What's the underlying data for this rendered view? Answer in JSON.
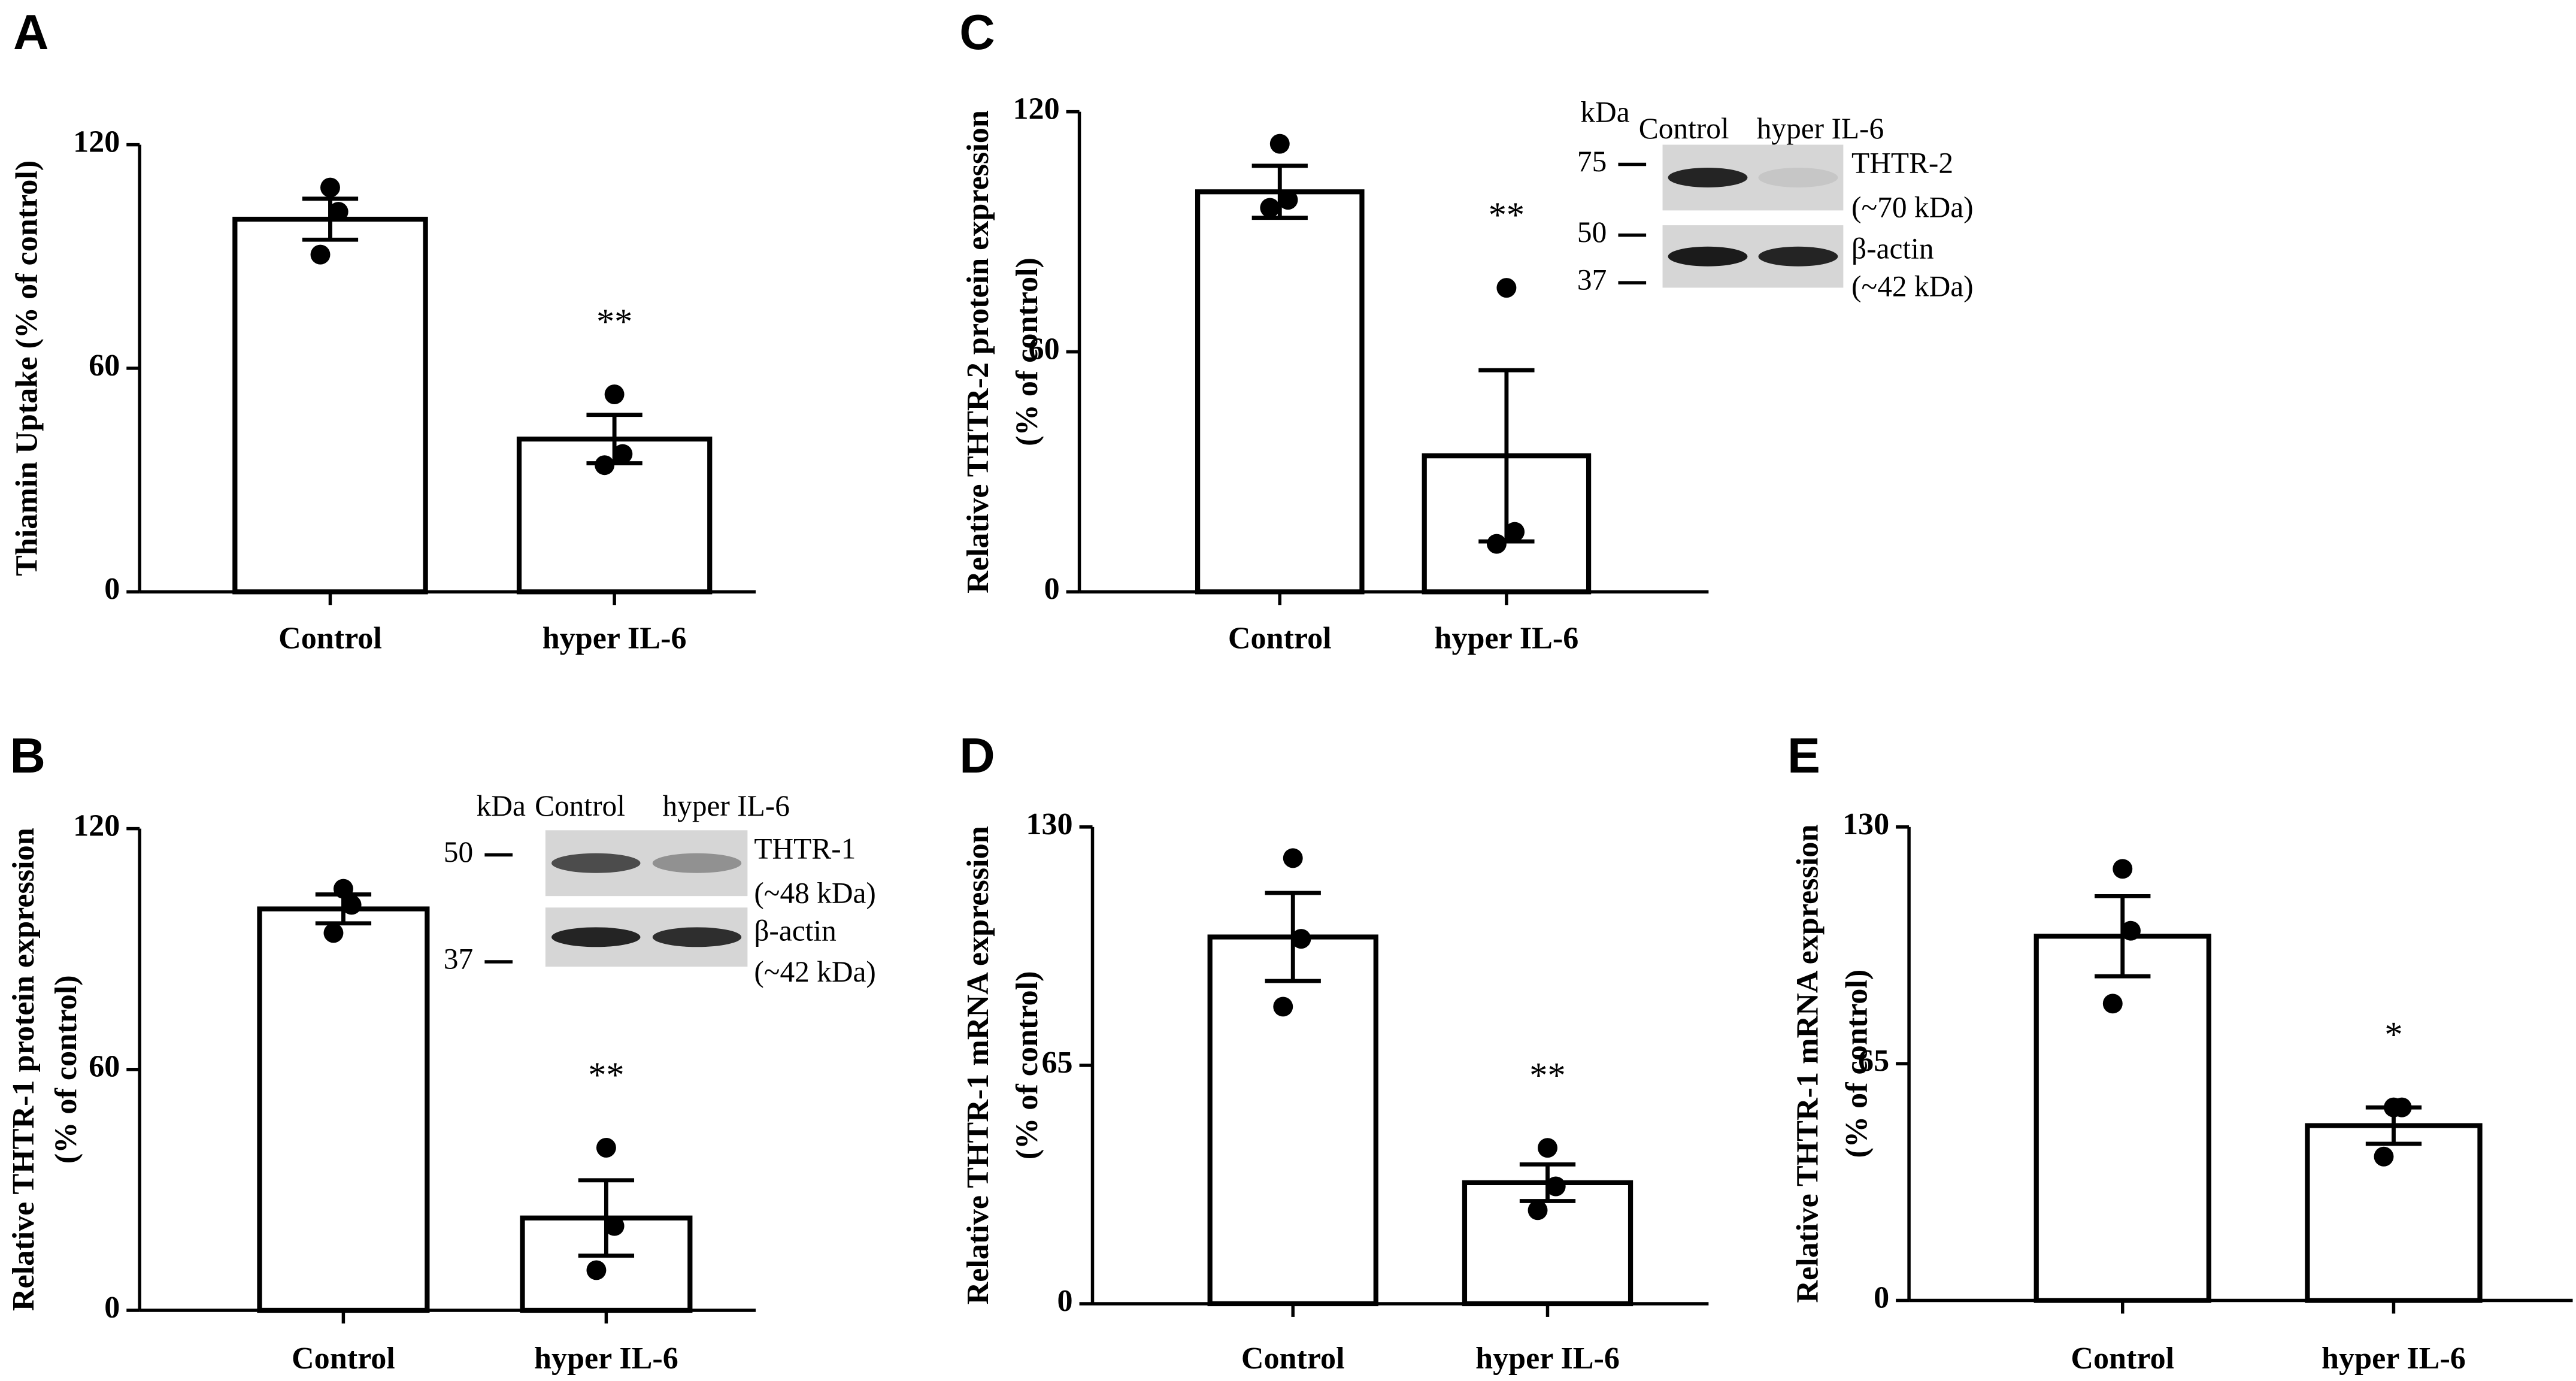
{
  "chart_data": [
    {
      "type": "bar",
      "label": "A",
      "ylabel": [
        "Thiamin Uptake (% of control)"
      ],
      "categories": [
        "Control",
        "hyper IL-6"
      ],
      "values": [
        100,
        41
      ],
      "errors": [
        5.5,
        6.5
      ],
      "points": [
        [
          108.5,
          102,
          90.5
        ],
        [
          53,
          37,
          34
        ]
      ],
      "significance": [
        null,
        "**"
      ],
      "ylim": [
        0,
        120
      ],
      "yticks": [
        0,
        60,
        120
      ],
      "color": "#ffffff"
    },
    {
      "type": "bar",
      "label": "B",
      "ylabel": [
        "Relative THTR-1 protein expression",
        "(% of control)"
      ],
      "categories": [
        "Control",
        "hyper IL-6"
      ],
      "values": [
        100,
        23
      ],
      "errors": [
        3.6,
        9.4
      ],
      "points": [
        [
          105,
          101,
          94
        ],
        [
          40.5,
          21,
          10
        ]
      ],
      "significance": [
        null,
        "**"
      ],
      "ylim": [
        0,
        120
      ],
      "yticks": [
        0,
        60,
        120
      ],
      "color": "#ffffff",
      "blot": {
        "kda_label": "kDa",
        "lanes": [
          "Control",
          "hyper IL-6"
        ],
        "markers": [
          50,
          37
        ],
        "bands": [
          {
            "name": "THTR-1",
            "size": "(~48 kDa)"
          },
          {
            "name": "β-actin",
            "size": "(~42 kDa)"
          }
        ]
      }
    },
    {
      "type": "bar",
      "label": "C",
      "ylabel": [
        "Relative THTR-2 protein expression",
        "(% of control)"
      ],
      "categories": [
        "Control",
        "hyper IL-6"
      ],
      "values": [
        100,
        34
      ],
      "errors": [
        6.5,
        21.4
      ],
      "points": [
        [
          112,
          98,
          96
        ],
        [
          76,
          15,
          12
        ]
      ],
      "significance": [
        null,
        "**"
      ],
      "ylim": [
        0,
        120
      ],
      "yticks": [
        0,
        60,
        120
      ],
      "color": "#ffffff",
      "blot": {
        "kda_label": "kDa",
        "lanes": [
          "Control",
          "hyper IL-6"
        ],
        "markers": [
          75,
          50,
          37
        ],
        "bands": [
          {
            "name": "THTR-2",
            "size": "(~70 kDa)"
          },
          {
            "name": "β-actin",
            "size": "(~42 kDa)"
          }
        ]
      }
    },
    {
      "type": "bar",
      "label": "D",
      "ylabel": [
        "Relative THTR-1 mRNA expression",
        "(% of control)"
      ],
      "categories": [
        "Control",
        "hyper IL-6"
      ],
      "values": [
        100,
        33
      ],
      "errors": [
        12,
        5
      ],
      "points": [
        [
          121.5,
          99.5,
          81
        ],
        [
          42.5,
          32,
          25.5
        ]
      ],
      "significance": [
        null,
        "**"
      ],
      "ylim": [
        0,
        130
      ],
      "yticks": [
        0,
        65,
        130
      ],
      "color": "#ffffff"
    },
    {
      "type": "bar",
      "label": "E",
      "ylabel": [
        "Relative THTR-1 mRNA expression",
        "(% of control)"
      ],
      "categories": [
        "Control",
        "hyper IL-6"
      ],
      "values": [
        100,
        48
      ],
      "errors": [
        11,
        5
      ],
      "points": [
        [
          118.5,
          101.5,
          81.5
        ],
        [
          53,
          53,
          39.5
        ]
      ],
      "significance": [
        null,
        "*"
      ],
      "ylim": [
        0,
        130
      ],
      "yticks": [
        0,
        65,
        130
      ],
      "color": "#ffffff"
    }
  ]
}
